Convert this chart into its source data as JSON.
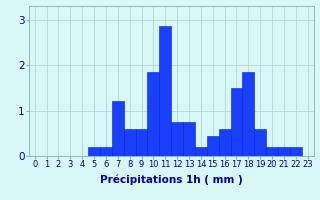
{
  "hours": [
    0,
    1,
    2,
    3,
    4,
    5,
    6,
    7,
    8,
    9,
    10,
    11,
    12,
    13,
    14,
    15,
    16,
    17,
    18,
    19,
    20,
    21,
    22,
    23
  ],
  "values": [
    0,
    0,
    0,
    0,
    0,
    0.2,
    0.2,
    1.2,
    0.6,
    0.6,
    1.85,
    2.85,
    0.75,
    0.75,
    0.2,
    0.45,
    0.6,
    1.5,
    1.85,
    0.6,
    0.2,
    0.2,
    0.2,
    0
  ],
  "bar_color": "#1a3fff",
  "bar_edge_color": "#0022cc",
  "background_color": "#d8f8f8",
  "grid_color": "#b0d8d8",
  "xlabel": "Précipitations 1h ( mm )",
  "xlabel_fontsize": 7.5,
  "tick_fontsize": 6.0,
  "ytick_fontsize": 7.5,
  "ylim": [
    0,
    3.3
  ],
  "yticks": [
    0,
    1,
    2,
    3
  ],
  "title_color": "#000099"
}
